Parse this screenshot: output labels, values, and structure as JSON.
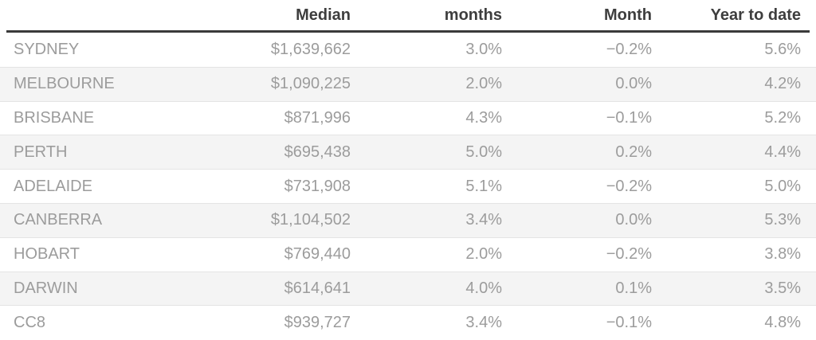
{
  "table": {
    "columns": [
      "",
      "Median",
      "months",
      "Month",
      "Year to date"
    ],
    "rows": [
      {
        "city": "SYDNEY",
        "median": "$1,639,662",
        "months": "3.0%",
        "month": "−0.2%",
        "ytd": "5.6%"
      },
      {
        "city": "MELBOURNE",
        "median": "$1,090,225",
        "months": "2.0%",
        "month": "0.0%",
        "ytd": "4.2%"
      },
      {
        "city": "BRISBANE",
        "median": "$871,996",
        "months": "4.3%",
        "month": "−0.1%",
        "ytd": "5.2%"
      },
      {
        "city": "PERTH",
        "median": "$695,438",
        "months": "5.0%",
        "month": "0.2%",
        "ytd": "4.4%"
      },
      {
        "city": "ADELAIDE",
        "median": "$731,908",
        "months": "5.1%",
        "month": "−0.2%",
        "ytd": "5.0%"
      },
      {
        "city": "CANBERRA",
        "median": "$1,104,502",
        "months": "3.4%",
        "month": "0.0%",
        "ytd": "5.3%"
      },
      {
        "city": "HOBART",
        "median": "$769,440",
        "months": "2.0%",
        "month": "−0.2%",
        "ytd": "3.8%"
      },
      {
        "city": "DARWIN",
        "median": "$614,641",
        "months": "4.0%",
        "month": "0.1%",
        "ytd": "3.5%"
      },
      {
        "city": "CC8",
        "median": "$939,727",
        "months": "3.4%",
        "month": "−0.1%",
        "ytd": "4.8%"
      }
    ]
  },
  "colors": {
    "header_text": "#3e3e3e",
    "body_text": "#9c9c9c",
    "zebra_stripe": "#f4f4f4",
    "row_separator": "#e4e4e4",
    "header_rule": "#3a3a3a",
    "background": "#ffffff"
  },
  "chart_data": {
    "type": "table",
    "columns": [
      "",
      "Median",
      "months",
      "Month",
      "Year to date"
    ],
    "rows": [
      [
        "SYDNEY",
        "$1,639,662",
        "3.0%",
        "−0.2%",
        "5.6%"
      ],
      [
        "MELBOURNE",
        "$1,090,225",
        "2.0%",
        "0.0%",
        "4.2%"
      ],
      [
        "BRISBANE",
        "$871,996",
        "4.3%",
        "−0.1%",
        "5.2%"
      ],
      [
        "PERTH",
        "$695,438",
        "5.0%",
        "0.2%",
        "4.4%"
      ],
      [
        "ADELAIDE",
        "$731,908",
        "5.1%",
        "−0.2%",
        "5.0%"
      ],
      [
        "CANBERRA",
        "$1,104,502",
        "3.4%",
        "0.0%",
        "5.3%"
      ],
      [
        "HOBART",
        "$769,440",
        "2.0%",
        "−0.2%",
        "3.8%"
      ],
      [
        "DARWIN",
        "$614,641",
        "4.0%",
        "0.1%",
        "3.5%"
      ],
      [
        "CC8",
        "$939,727",
        "3.4%",
        "−0.1%",
        "4.8%"
      ]
    ],
    "notes": "Zebra-striped table of capital city medians with 'months', 'Month' and 'Year to date' percentage-change columns; negative values use minus dashes."
  }
}
